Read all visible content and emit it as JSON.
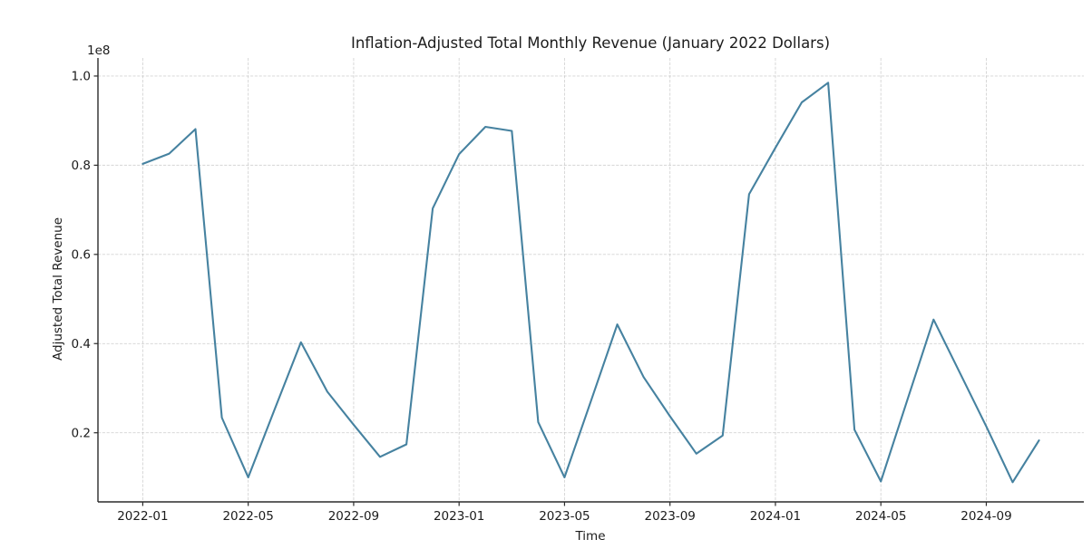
{
  "chart": {
    "title": "Inflation-Adjusted Total Monthly Revenue (January 2022 Dollars)",
    "xlabel": "Time",
    "ylabel": "Adjusted Total Revenue",
    "y_offset_label": "1e8"
  },
  "chart_data": {
    "type": "line",
    "title": "Inflation-Adjusted Total Monthly Revenue (January 2022 Dollars)",
    "xlabel": "Time",
    "ylabel": "Adjusted Total Revenue",
    "legend_position": "none",
    "grid": true,
    "grid_style": "dashed",
    "x": [
      "2022-01",
      "2022-02",
      "2022-03",
      "2022-04",
      "2022-05",
      "2022-06",
      "2022-07",
      "2022-08",
      "2022-09",
      "2022-10",
      "2022-11",
      "2022-12",
      "2023-01",
      "2023-02",
      "2023-03",
      "2023-04",
      "2023-05",
      "2023-06",
      "2023-07",
      "2023-08",
      "2023-09",
      "2023-10",
      "2023-11",
      "2023-12",
      "2024-01",
      "2024-02",
      "2024-03",
      "2024-04",
      "2024-05",
      "2024-06",
      "2024-07",
      "2024-08",
      "2024-09",
      "2024-10",
      "2024-11"
    ],
    "series": [
      {
        "name": "Adjusted Total Revenue",
        "values": [
          80300000,
          82600000,
          88100000,
          23400000,
          10000000,
          25200000,
          40300000,
          29200000,
          21800000,
          14600000,
          17400000,
          70300000,
          82500000,
          88600000,
          87700000,
          22400000,
          10000000,
          27100000,
          44300000,
          32500000,
          23700000,
          15300000,
          19400000,
          73500000,
          83900000,
          94100000,
          98500000,
          20700000,
          9100000,
          27300000,
          45400000,
          33400000,
          21400000,
          8900000,
          18300000
        ]
      }
    ],
    "x_tick_labels": [
      "2022-01",
      "2022-05",
      "2022-09",
      "2023-01",
      "2023-05",
      "2023-09",
      "2024-01",
      "2024-05",
      "2024-09"
    ],
    "x_tick_month_index": [
      0,
      4,
      8,
      12,
      16,
      20,
      24,
      28,
      32
    ],
    "y_tick_values": [
      20000000,
      40000000,
      60000000,
      80000000,
      100000000
    ],
    "y_tick_labels": [
      "0.2",
      "0.4",
      "0.6",
      "0.8",
      "1.0"
    ],
    "y_offset_label": "1e8",
    "xlim_month_index": [
      -1.7,
      35.7
    ],
    "ylim": [
      4500000,
      104050000
    ],
    "line_color": "#4682a0",
    "grid_color": "#b0b0b0",
    "spine_color": "#2b2b2b",
    "text_color": "#1c1c1c"
  }
}
